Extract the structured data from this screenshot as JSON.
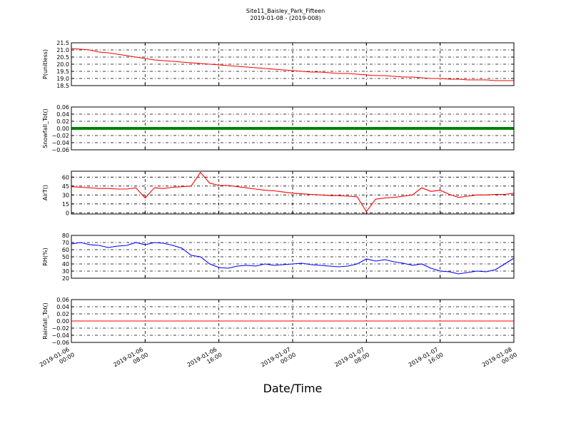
{
  "chart_data": [
    {
      "type": "line",
      "title": "Site11_Baisley_Park_Fifteen",
      "subtitle": "2019-01-08 - (2019-008)",
      "ylabel": "P(unitless)",
      "color": "#ff0000",
      "x": [
        "2019-01-06 00:00",
        "2019-01-06 01:00",
        "2019-01-06 02:00",
        "2019-01-06 03:00",
        "2019-01-06 04:00",
        "2019-01-06 05:00",
        "2019-01-06 06:00",
        "2019-01-06 07:00",
        "2019-01-06 08:00",
        "2019-01-06 09:00",
        "2019-01-06 10:00",
        "2019-01-06 11:00",
        "2019-01-06 12:00",
        "2019-01-06 13:00",
        "2019-01-06 14:00",
        "2019-01-06 15:00",
        "2019-01-06 16:00",
        "2019-01-06 17:00",
        "2019-01-06 18:00",
        "2019-01-06 19:00",
        "2019-01-06 20:00",
        "2019-01-06 21:00",
        "2019-01-06 22:00",
        "2019-01-06 23:00",
        "2019-01-07 00:00",
        "2019-01-07 01:00",
        "2019-01-07 02:00",
        "2019-01-07 03:00",
        "2019-01-07 04:00",
        "2019-01-07 05:00",
        "2019-01-07 06:00",
        "2019-01-07 07:00",
        "2019-01-07 08:00",
        "2019-01-07 09:00",
        "2019-01-07 10:00",
        "2019-01-07 11:00",
        "2019-01-07 12:00",
        "2019-01-07 13:00",
        "2019-01-07 14:00",
        "2019-01-07 15:00",
        "2019-01-07 16:00",
        "2019-01-07 17:00",
        "2019-01-07 18:00",
        "2019-01-07 19:00",
        "2019-01-07 20:00",
        "2019-01-07 21:00",
        "2019-01-07 22:00",
        "2019-01-07 23:00",
        "2019-01-08 00:00"
      ],
      "values": [
        21.1,
        21.05,
        21.0,
        20.85,
        20.8,
        20.7,
        20.6,
        20.5,
        20.4,
        20.3,
        20.25,
        20.2,
        20.15,
        20.1,
        20.05,
        20.0,
        19.95,
        19.9,
        19.85,
        19.8,
        19.75,
        19.7,
        19.65,
        19.6,
        19.55,
        19.5,
        19.45,
        19.45,
        19.4,
        19.35,
        19.35,
        19.3,
        19.25,
        19.2,
        19.2,
        19.15,
        19.1,
        19.1,
        19.05,
        19.0,
        19.0,
        18.95,
        18.95,
        18.9,
        18.9,
        18.9,
        18.85,
        18.85,
        18.85
      ],
      "xlim": [
        "2019-01-06 00:00",
        "2019-01-08 00:00"
      ],
      "xticks": [
        "2019-01-06 00:00",
        "2019-01-06 08:00",
        "2019-01-06 16:00",
        "2019-01-07 00:00",
        "2019-01-07 08:00",
        "2019-01-07 16:00",
        "2019-01-08 00:00"
      ],
      "ylim": [
        18.5,
        21.5
      ],
      "yticks": [
        18.5,
        {
          "value": 19.0,
          "label": "19.0"
        },
        19.5,
        {
          "value": 20.0,
          "label": "20.0"
        },
        20.5,
        {
          "value": 21.0,
          "label": "21.0"
        },
        21.5
      ],
      "grid": true
    },
    {
      "type": "line",
      "ylabel": "Snowfall_Tot()",
      "color": "#008000",
      "x": [
        "2019-01-06 00:00",
        "2019-01-06 01:00",
        "2019-01-06 02:00",
        "2019-01-06 03:00",
        "2019-01-06 04:00",
        "2019-01-06 05:00",
        "2019-01-06 06:00",
        "2019-01-06 07:00",
        "2019-01-06 08:00",
        "2019-01-06 09:00",
        "2019-01-06 10:00",
        "2019-01-06 11:00",
        "2019-01-06 12:00",
        "2019-01-06 13:00",
        "2019-01-06 14:00",
        "2019-01-06 15:00",
        "2019-01-06 16:00",
        "2019-01-06 17:00",
        "2019-01-06 18:00",
        "2019-01-06 19:00",
        "2019-01-06 20:00",
        "2019-01-06 21:00",
        "2019-01-06 22:00",
        "2019-01-06 23:00",
        "2019-01-07 00:00",
        "2019-01-07 01:00",
        "2019-01-07 02:00",
        "2019-01-07 03:00",
        "2019-01-07 04:00",
        "2019-01-07 05:00",
        "2019-01-07 06:00",
        "2019-01-07 07:00",
        "2019-01-07 08:00",
        "2019-01-07 09:00",
        "2019-01-07 10:00",
        "2019-01-07 11:00",
        "2019-01-07 12:00",
        "2019-01-07 13:00",
        "2019-01-07 14:00",
        "2019-01-07 15:00",
        "2019-01-07 16:00",
        "2019-01-07 17:00",
        "2019-01-07 18:00",
        "2019-01-07 19:00",
        "2019-01-07 20:00",
        "2019-01-07 21:00",
        "2019-01-07 22:00",
        "2019-01-07 23:00",
        "2019-01-08 00:00"
      ],
      "values": [
        0,
        0,
        0,
        0,
        0,
        0,
        0,
        0,
        0,
        0,
        0,
        0,
        0,
        0,
        0,
        0,
        0,
        0,
        0,
        0,
        0,
        0,
        0,
        0,
        0,
        0,
        0,
        0,
        0,
        0,
        0,
        0,
        0,
        0,
        0,
        0,
        0,
        0,
        0,
        0,
        0,
        0,
        0,
        0,
        0,
        0,
        0,
        0,
        0
      ],
      "xlim": [
        "2019-01-06 00:00",
        "2019-01-08 00:00"
      ],
      "xticks": [
        "2019-01-06 00:00",
        "2019-01-06 08:00",
        "2019-01-06 16:00",
        "2019-01-07 00:00",
        "2019-01-07 08:00",
        "2019-01-07 16:00",
        "2019-01-08 00:00"
      ],
      "ylim": [
        -0.06,
        0.06
      ],
      "yticks": [
        {
          "value": -0.06,
          "label": "−0.06"
        },
        {
          "value": -0.04,
          "label": "−0.04"
        },
        {
          "value": -0.02,
          "label": "−0.02"
        },
        {
          "value": 0,
          "label": "0.00"
        },
        {
          "value": 0.02,
          "label": "0.02"
        },
        {
          "value": 0.04,
          "label": "0.04"
        },
        {
          "value": 0.06,
          "label": "0.06"
        }
      ],
      "grid": true
    },
    {
      "type": "line",
      "ylabel": "AirT()",
      "color": "#ff0000",
      "x": [
        "2019-01-06 00:00",
        "2019-01-06 01:00",
        "2019-01-06 02:00",
        "2019-01-06 03:00",
        "2019-01-06 04:00",
        "2019-01-06 05:00",
        "2019-01-06 06:00",
        "2019-01-06 07:00",
        "2019-01-06 08:00",
        "2019-01-06 09:00",
        "2019-01-06 10:00",
        "2019-01-06 11:00",
        "2019-01-06 12:00",
        "2019-01-06 13:00",
        "2019-01-06 14:00",
        "2019-01-06 15:00",
        "2019-01-06 16:00",
        "2019-01-06 17:00",
        "2019-01-06 18:00",
        "2019-01-06 19:00",
        "2019-01-06 20:00",
        "2019-01-06 21:00",
        "2019-01-06 22:00",
        "2019-01-06 23:00",
        "2019-01-07 00:00",
        "2019-01-07 01:00",
        "2019-01-07 02:00",
        "2019-01-07 03:00",
        "2019-01-07 04:00",
        "2019-01-07 05:00",
        "2019-01-07 06:00",
        "2019-01-07 07:00",
        "2019-01-07 08:00",
        "2019-01-07 09:00",
        "2019-01-07 10:00",
        "2019-01-07 11:00",
        "2019-01-07 12:00",
        "2019-01-07 13:00",
        "2019-01-07 14:00",
        "2019-01-07 15:00",
        "2019-01-07 16:00",
        "2019-01-07 17:00",
        "2019-01-07 18:00",
        "2019-01-07 19:00",
        "2019-01-07 20:00",
        "2019-01-07 21:00",
        "2019-01-07 22:00",
        "2019-01-07 23:00",
        "2019-01-08 00:00"
      ],
      "values": [
        44,
        43,
        42,
        41,
        41,
        40,
        40,
        42,
        25,
        42,
        41,
        43,
        44,
        45,
        68,
        50,
        46,
        46,
        44,
        42,
        40,
        38,
        37,
        35,
        33,
        32,
        31,
        30,
        29,
        29,
        28,
        27,
        2,
        23,
        25,
        26,
        28,
        30,
        42,
        36,
        38,
        31,
        26,
        28,
        30,
        30,
        31,
        31,
        33
      ],
      "xlim": [
        "2019-01-06 00:00",
        "2019-01-08 00:00"
      ],
      "xticks": [
        "2019-01-06 00:00",
        "2019-01-06 08:00",
        "2019-01-06 16:00",
        "2019-01-07 00:00",
        "2019-01-07 08:00",
        "2019-01-07 16:00",
        "2019-01-08 00:00"
      ],
      "ylim": [
        -2,
        70
      ],
      "yticks": [
        0,
        15,
        30,
        45,
        60
      ],
      "grid": true
    },
    {
      "type": "line",
      "ylabel": "RH(%)",
      "color": "#0000ff",
      "x": [
        "2019-01-06 00:00",
        "2019-01-06 01:00",
        "2019-01-06 02:00",
        "2019-01-06 03:00",
        "2019-01-06 04:00",
        "2019-01-06 05:00",
        "2019-01-06 06:00",
        "2019-01-06 07:00",
        "2019-01-06 08:00",
        "2019-01-06 09:00",
        "2019-01-06 10:00",
        "2019-01-06 11:00",
        "2019-01-06 12:00",
        "2019-01-06 13:00",
        "2019-01-06 14:00",
        "2019-01-06 15:00",
        "2019-01-06 16:00",
        "2019-01-06 17:00",
        "2019-01-06 18:00",
        "2019-01-06 19:00",
        "2019-01-06 20:00",
        "2019-01-06 21:00",
        "2019-01-06 22:00",
        "2019-01-06 23:00",
        "2019-01-07 00:00",
        "2019-01-07 01:00",
        "2019-01-07 02:00",
        "2019-01-07 03:00",
        "2019-01-07 04:00",
        "2019-01-07 05:00",
        "2019-01-07 06:00",
        "2019-01-07 07:00",
        "2019-01-07 08:00",
        "2019-01-07 09:00",
        "2019-01-07 10:00",
        "2019-01-07 11:00",
        "2019-01-07 12:00",
        "2019-01-07 13:00",
        "2019-01-07 14:00",
        "2019-01-07 15:00",
        "2019-01-07 16:00",
        "2019-01-07 17:00",
        "2019-01-07 18:00",
        "2019-01-07 19:00",
        "2019-01-07 20:00",
        "2019-01-07 21:00",
        "2019-01-07 22:00",
        "2019-01-07 23:00",
        "2019-01-08 00:00"
      ],
      "values": [
        68,
        70,
        67,
        66,
        63,
        65,
        66,
        70,
        67,
        70,
        69,
        66,
        62,
        52,
        50,
        40,
        35,
        34,
        37,
        38,
        37,
        40,
        38,
        39,
        40,
        41,
        39,
        38,
        37,
        36,
        37,
        40,
        47,
        44,
        46,
        43,
        41,
        38,
        40,
        34,
        30,
        29,
        26,
        28,
        30,
        29,
        32,
        40,
        48
      ],
      "xlim": [
        "2019-01-06 00:00",
        "2019-01-08 00:00"
      ],
      "xticks": [
        "2019-01-06 00:00",
        "2019-01-06 08:00",
        "2019-01-06 16:00",
        "2019-01-07 00:00",
        "2019-01-07 08:00",
        "2019-01-07 16:00",
        "2019-01-08 00:00"
      ],
      "ylim": [
        20,
        80
      ],
      "yticks": [
        20,
        30,
        40,
        50,
        60,
        70,
        80
      ],
      "grid": true
    },
    {
      "type": "line",
      "ylabel": "Rainfall_Tot()",
      "xlabel": "Date/Time",
      "color": "#ff0000",
      "x": [
        "2019-01-06 00:00",
        "2019-01-06 01:00",
        "2019-01-06 02:00",
        "2019-01-06 03:00",
        "2019-01-06 04:00",
        "2019-01-06 05:00",
        "2019-01-06 06:00",
        "2019-01-06 07:00",
        "2019-01-06 08:00",
        "2019-01-06 09:00",
        "2019-01-06 10:00",
        "2019-01-06 11:00",
        "2019-01-06 12:00",
        "2019-01-06 13:00",
        "2019-01-06 14:00",
        "2019-01-06 15:00",
        "2019-01-06 16:00",
        "2019-01-06 17:00",
        "2019-01-06 18:00",
        "2019-01-06 19:00",
        "2019-01-06 20:00",
        "2019-01-06 21:00",
        "2019-01-06 22:00",
        "2019-01-06 23:00",
        "2019-01-07 00:00",
        "2019-01-07 01:00",
        "2019-01-07 02:00",
        "2019-01-07 03:00",
        "2019-01-07 04:00",
        "2019-01-07 05:00",
        "2019-01-07 06:00",
        "2019-01-07 07:00",
        "2019-01-07 08:00",
        "2019-01-07 09:00",
        "2019-01-07 10:00",
        "2019-01-07 11:00",
        "2019-01-07 12:00",
        "2019-01-07 13:00",
        "2019-01-07 14:00",
        "2019-01-07 15:00",
        "2019-01-07 16:00",
        "2019-01-07 17:00",
        "2019-01-07 18:00",
        "2019-01-07 19:00",
        "2019-01-07 20:00",
        "2019-01-07 21:00",
        "2019-01-07 22:00",
        "2019-01-07 23:00",
        "2019-01-08 00:00"
      ],
      "values": [
        0,
        0,
        0,
        0,
        0,
        0,
        0,
        0,
        0,
        0,
        0,
        0,
        0,
        0,
        0,
        0,
        0,
        0,
        0,
        0,
        0,
        0,
        0,
        0,
        0,
        0,
        0,
        0,
        0,
        0,
        0,
        0,
        0,
        0,
        0,
        0,
        0,
        0,
        0,
        0,
        0,
        0,
        0,
        0,
        0,
        0,
        0,
        0,
        0
      ],
      "xlim": [
        "2019-01-06 00:00",
        "2019-01-08 00:00"
      ],
      "xticks": [
        "2019-01-06 00:00",
        "2019-01-06 08:00",
        "2019-01-06 16:00",
        "2019-01-07 00:00",
        "2019-01-07 08:00",
        "2019-01-07 16:00",
        "2019-01-08 00:00"
      ],
      "ylim": [
        -0.06,
        0.06
      ],
      "yticks": [
        {
          "value": -0.06,
          "label": "−0.06"
        },
        {
          "value": -0.04,
          "label": "−0.04"
        },
        {
          "value": -0.02,
          "label": "−0.02"
        },
        {
          "value": 0,
          "label": "0.00"
        },
        {
          "value": 0.02,
          "label": "0.02"
        },
        {
          "value": 0.04,
          "label": "0.04"
        },
        {
          "value": 0.06,
          "label": "0.06"
        }
      ],
      "grid": true
    }
  ]
}
